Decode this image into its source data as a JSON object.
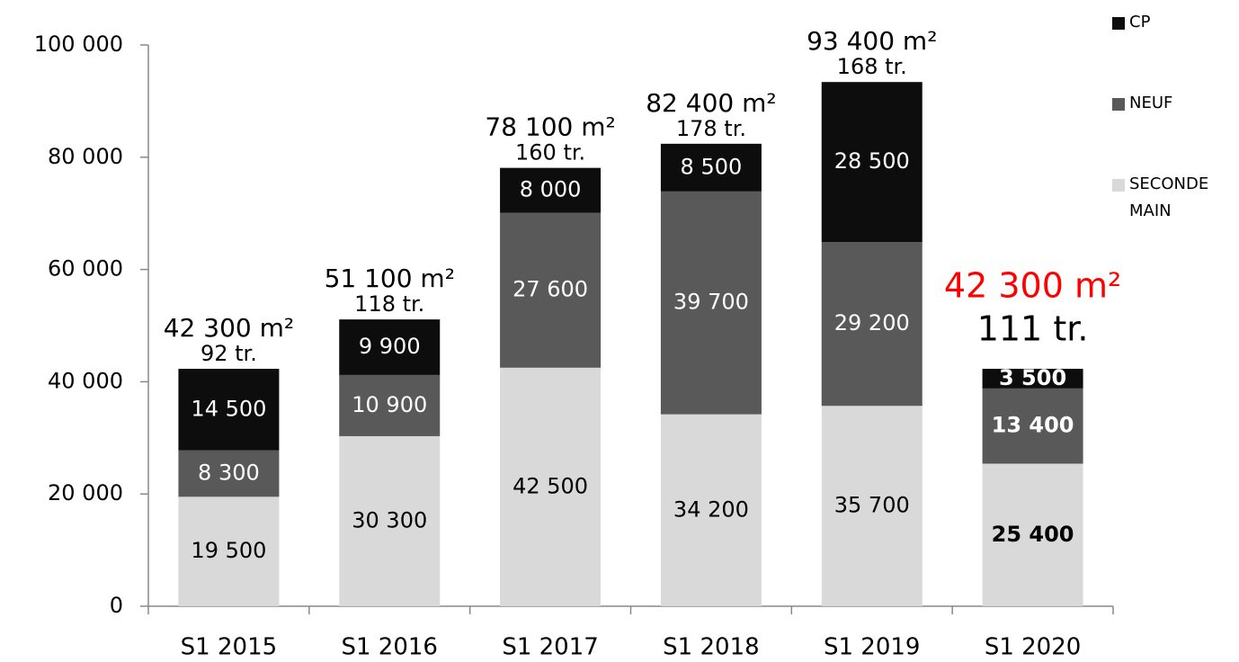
{
  "chart_data": {
    "type": "stacked-bar",
    "categories": [
      "S1 2015",
      "S1 2016",
      "S1 2017",
      "S1 2018",
      "S1 2019",
      "S1 2020"
    ],
    "series": [
      {
        "name": "SECONDE MAIN",
        "color": "#d9d9d9",
        "text_color": "#000000",
        "values": [
          19500,
          30300,
          42500,
          34200,
          35700,
          25400
        ],
        "value_labels": [
          "19 500",
          "30 300",
          "42 500",
          "34 200",
          "35 700",
          "25 400"
        ]
      },
      {
        "name": "NEUF",
        "color": "#595959",
        "text_color": "#ffffff",
        "values": [
          8300,
          10900,
          27600,
          39700,
          29200,
          13400
        ],
        "value_labels": [
          "8 300",
          "10 900",
          "27 600",
          "39 700",
          "29 200",
          "13 400"
        ]
      },
      {
        "name": "CP",
        "color": "#0d0d0d",
        "text_color": "#ffffff",
        "values": [
          14500,
          9900,
          8000,
          8500,
          28500,
          3500
        ],
        "value_labels": [
          "14 500",
          "9 900",
          "8 000",
          "8 500",
          "28 500",
          "3 500"
        ]
      }
    ],
    "total_labels": [
      "42 300 m²",
      "51 100 m²",
      "78 100 m²",
      "82 400 m²",
      "93 400 m²",
      "42 300 m²"
    ],
    "count_labels": [
      "92 tr.",
      "118 tr.",
      "160 tr.",
      "178 tr.",
      "168 tr.",
      "111 tr."
    ],
    "ylim": [
      0,
      100000
    ],
    "yticks": [
      0,
      {
        "value": 20000,
        "label": "20 000"
      },
      {
        "value": 40000,
        "label": "40 000"
      },
      {
        "value": 60000,
        "label": "60 000"
      },
      {
        "value": 80000,
        "label": "80 000"
      },
      {
        "value": 100000,
        "label": "100 000"
      }
    ],
    "legend": "right"
  }
}
